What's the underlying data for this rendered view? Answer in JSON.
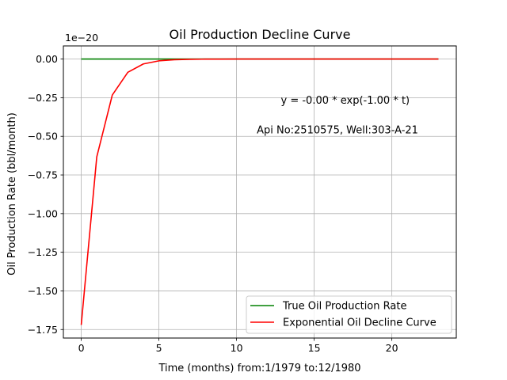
{
  "chart_data": {
    "type": "line",
    "title": "Oil Production Decline Curve",
    "xlabel": "Time (months) from:1/1979 to:12/1980",
    "ylabel": "Oil Production Rate (bbl/month)",
    "offset_label": "1e−20",
    "xlim": [
      -1.15,
      24.15
    ],
    "ylim": [
      -1.805,
      0.085
    ],
    "xticks": [
      0,
      5,
      10,
      15,
      20
    ],
    "xtick_labels": [
      "0",
      "5",
      "10",
      "15",
      "20"
    ],
    "yticks": [
      0.0,
      -0.25,
      -0.5,
      -0.75,
      -1.0,
      -1.25,
      -1.5,
      -1.75
    ],
    "ytick_labels": [
      "0.00",
      "−0.25",
      "−0.50",
      "−0.75",
      "−1.00",
      "−1.25",
      "−1.50",
      "−1.75"
    ],
    "grid": true,
    "legend_position": "lower-right",
    "annotations": [
      {
        "text": "y = -0.00 * exp(-1.00 * t)",
        "x": 17,
        "y": -0.29
      },
      {
        "text": "Api No:2510575, Well:303-A-21",
        "x": 16.5,
        "y": -0.48
      }
    ],
    "series": [
      {
        "name": "True Oil Production Rate",
        "color": "#008000",
        "x": [
          0,
          23
        ],
        "y": [
          0,
          0
        ]
      },
      {
        "name": "Exponential Oil Decline Curve",
        "color": "#ff0000",
        "x": [
          0,
          1,
          2,
          3,
          4,
          5,
          6,
          7,
          8,
          9,
          10,
          11,
          12,
          13,
          14,
          15,
          16,
          17,
          18,
          19,
          20,
          21,
          22,
          23
        ],
        "y": [
          -1.72,
          -0.633,
          -0.233,
          -0.0856,
          -0.0315,
          -0.0116,
          -0.00426,
          -0.00157,
          -0.000577,
          -0.000212,
          -7.8e-05,
          -2.87e-05,
          -1.06e-05,
          -3.9e-06,
          -1.4e-06,
          -5e-07,
          -2e-07,
          -1e-07,
          0,
          0,
          0,
          0,
          0,
          0
        ]
      }
    ]
  }
}
